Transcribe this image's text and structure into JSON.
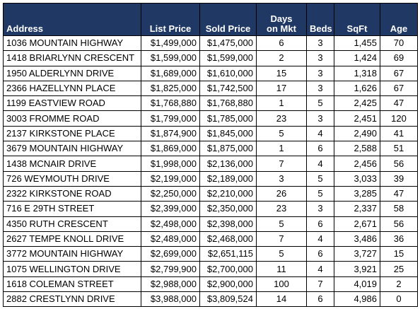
{
  "table": {
    "headers": [
      "Address",
      "List Price",
      "Sold Price",
      "Days on Mkt",
      "Beds",
      "SqFt",
      "Age"
    ],
    "rows": [
      [
        "1036 MOUNTAIN HIGHWAY",
        "$1,499,000",
        "$1,475,000",
        "6",
        "3",
        "1,455",
        "70"
      ],
      [
        "1418 BRIARLYNN CRESCENT",
        "$1,599,000",
        "$1,599,000",
        "2",
        "3",
        "1,424",
        "69"
      ],
      [
        "1950 ALDERLYNN DRIVE",
        "$1,689,000",
        "$1,610,000",
        "15",
        "3",
        "1,318",
        "67"
      ],
      [
        "2366 HAZELLYNN PLACE",
        "$1,825,000",
        "$1,742,500",
        "17",
        "3",
        "1,626",
        "67"
      ],
      [
        "1199 EASTVIEW ROAD",
        "$1,768,880",
        "$1,768,880",
        "1",
        "5",
        "2,425",
        "47"
      ],
      [
        "3003 FROMME ROAD",
        "$1,799,000",
        "$1,785,000",
        "23",
        "3",
        "2,451",
        "120"
      ],
      [
        "2137 KIRKSTONE PLACE",
        "$1,874,900",
        "$1,845,000",
        "5",
        "4",
        "2,490",
        "41"
      ],
      [
        "3679 MOUNTAIN HIGHWAY",
        "$1,869,000",
        "$1,875,000",
        "1",
        "6",
        "2,588",
        "51"
      ],
      [
        "1438 MCNAIR DRIVE",
        "$1,998,000",
        "$2,136,000",
        "7",
        "4",
        "2,456",
        "56"
      ],
      [
        "726 WEYMOUTH DRIVE",
        "$2,199,000",
        "$2,189,000",
        "3",
        "5",
        "3,033",
        "39"
      ],
      [
        "2322 KIRKSTONE ROAD",
        "$2,250,000",
        "$2,210,000",
        "26",
        "5",
        "3,285",
        "47"
      ],
      [
        "716 E 29TH STREET",
        "$2,399,000",
        "$2,350,000",
        "23",
        "3",
        "2,337",
        "58"
      ],
      [
        "4350 RUTH CRESCENT",
        "$2,498,000",
        "$2,398,000",
        "5",
        "6",
        "2,671",
        "56"
      ],
      [
        "2627 TEMPE KNOLL DRIVE",
        "$2,489,000",
        "$2,468,000",
        "7",
        "4",
        "3,486",
        "36"
      ],
      [
        "3772 MOUNTAIN HIGHWAY",
        "$2,699,000",
        "$2,651,115",
        "5",
        "6",
        "3,727",
        "15"
      ],
      [
        "1075 WELLINGTON DRIVE",
        "$2,799,900",
        "$2,700,000",
        "11",
        "4",
        "3,921",
        "25"
      ],
      [
        "1618 COLEMAN STREET",
        "$2,988,000",
        "$2,900,000",
        "100",
        "7",
        "4,019",
        "2"
      ],
      [
        "2882 CRESTLYNN DRIVE",
        "$3,988,000",
        "$3,809,524",
        "14",
        "6",
        "4,986",
        "0"
      ]
    ]
  }
}
